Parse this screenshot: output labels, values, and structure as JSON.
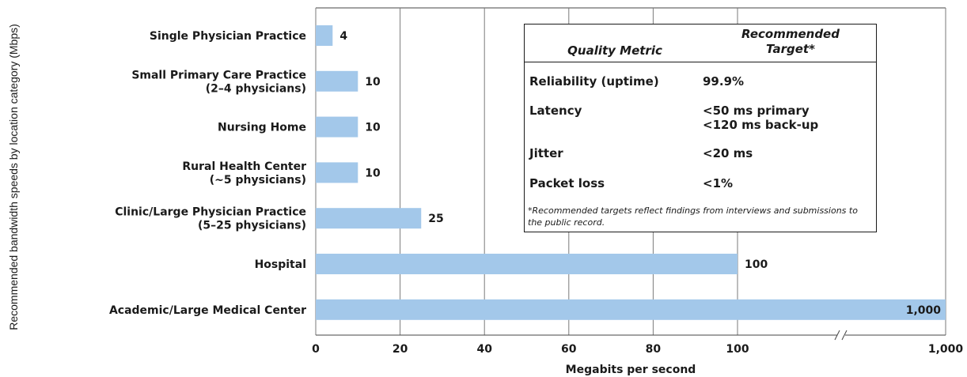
{
  "chart_data": {
    "type": "bar",
    "orientation": "horizontal",
    "categories": [
      [
        "Single Physician Practice"
      ],
      [
        "Small Primary Care Practice",
        "(2–4 physicians)"
      ],
      [
        "Nursing Home"
      ],
      [
        "Rural Health Center",
        "(~5 physicians)"
      ],
      [
        "Clinic/Large Physician Practice",
        "(5–25 physicians)"
      ],
      [
        "Hospital"
      ],
      [
        "Academic/Large Medical Center"
      ]
    ],
    "values": [
      4,
      10,
      10,
      10,
      25,
      100,
      1000
    ],
    "value_labels": [
      "4",
      "10",
      "10",
      "10",
      "25",
      "100",
      "1,000"
    ],
    "xlabel": "Megabits per second",
    "ylabel": "Recommended bandwidth speeds by location category (Mbps)",
    "xticks": [
      "0",
      "20",
      "40",
      "60",
      "80",
      "100",
      "1,000"
    ],
    "axis_break": "between 100 and 1,000",
    "grid": true,
    "bar_color": "#a3c8ea"
  },
  "table": {
    "header_metric": "Quality Metric",
    "header_target": "Recommended\nTarget*",
    "rows": [
      {
        "metric": "Reliability (uptime)",
        "target": "99.9%"
      },
      {
        "metric": "Latency",
        "target": "<50 ms primary\n<120 ms back-up"
      },
      {
        "metric": "Jitter",
        "target": "<20 ms"
      },
      {
        "metric": "Packet loss",
        "target": "<1%"
      }
    ],
    "footnote": "*Recommended targets reflect findings from interviews and submissions to the public record."
  }
}
